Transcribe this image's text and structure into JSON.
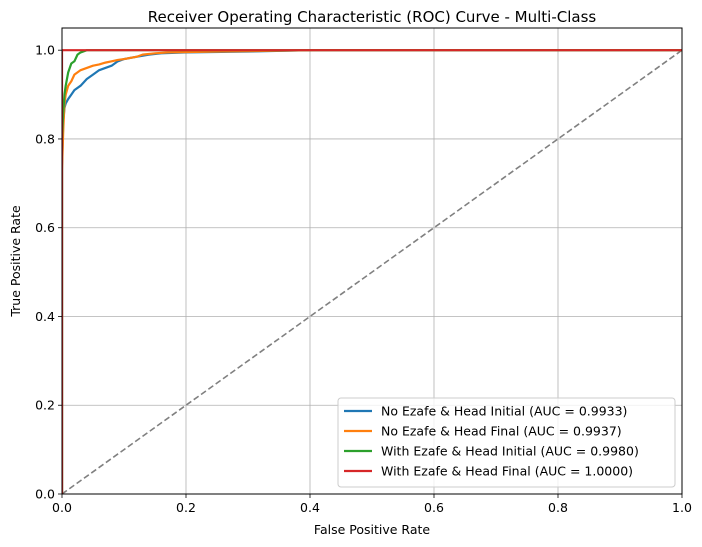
{
  "chart_data": {
    "type": "line",
    "title": "Receiver Operating Characteristic (ROC) Curve - Multi-Class",
    "xlabel": "False Positive Rate",
    "ylabel": "True Positive Rate",
    "xlim": [
      0.0,
      1.0
    ],
    "ylim": [
      0.0,
      1.05
    ],
    "xticks": [
      "0.0",
      "0.2",
      "0.4",
      "0.6",
      "0.8",
      "1.0"
    ],
    "yticks": [
      "0.0",
      "0.2",
      "0.4",
      "0.6",
      "0.8",
      "1.0"
    ],
    "grid": true,
    "legend_position": "lower-right",
    "series": [
      {
        "name": "No Ezafe & Head Initial (AUC = 0.9933)",
        "color": "#1f77b4",
        "x": [
          0.0,
          0.0,
          0.002,
          0.004,
          0.006,
          0.01,
          0.015,
          0.02,
          0.03,
          0.04,
          0.05,
          0.06,
          0.07,
          0.08,
          0.09,
          0.1,
          0.12,
          0.14,
          0.16,
          0.2,
          0.3,
          0.4,
          1.0
        ],
        "y": [
          0.0,
          0.74,
          0.84,
          0.87,
          0.88,
          0.89,
          0.9,
          0.91,
          0.92,
          0.935,
          0.945,
          0.955,
          0.96,
          0.965,
          0.975,
          0.98,
          0.985,
          0.99,
          0.993,
          0.995,
          0.997,
          1.0,
          1.0
        ]
      },
      {
        "name": "No Ezafe & Head Final (AUC = 0.9937)",
        "color": "#ff7f0e",
        "x": [
          0.0,
          0.0,
          0.002,
          0.004,
          0.006,
          0.01,
          0.015,
          0.02,
          0.03,
          0.04,
          0.05,
          0.06,
          0.07,
          0.08,
          0.09,
          0.1,
          0.12,
          0.13,
          0.15,
          0.17,
          0.25,
          0.41,
          1.0
        ],
        "y": [
          0.0,
          0.73,
          0.82,
          0.88,
          0.9,
          0.92,
          0.93,
          0.945,
          0.955,
          0.96,
          0.965,
          0.968,
          0.972,
          0.975,
          0.978,
          0.98,
          0.985,
          0.99,
          0.993,
          0.995,
          0.997,
          1.0,
          1.0
        ]
      },
      {
        "name": "With Ezafe & Head Initial (AUC = 0.9980)",
        "color": "#2ca02c",
        "x": [
          0.0,
          0.0,
          0.002,
          0.004,
          0.006,
          0.01,
          0.015,
          0.02,
          0.025,
          0.03,
          0.04,
          0.05,
          1.0
        ],
        "y": [
          0.0,
          0.8,
          0.86,
          0.9,
          0.92,
          0.95,
          0.97,
          0.975,
          0.99,
          0.995,
          1.0,
          1.0,
          1.0
        ]
      },
      {
        "name": "With Ezafe & Head Final (AUC = 1.0000)",
        "color": "#d62728",
        "x": [
          0.0,
          0.0,
          0.0,
          1.0
        ],
        "y": [
          0.0,
          0.44,
          1.0,
          1.0
        ]
      }
    ],
    "reference_line": {
      "color": "#808080",
      "x": [
        0.0,
        1.0
      ],
      "y": [
        0.0,
        1.0
      ]
    }
  }
}
